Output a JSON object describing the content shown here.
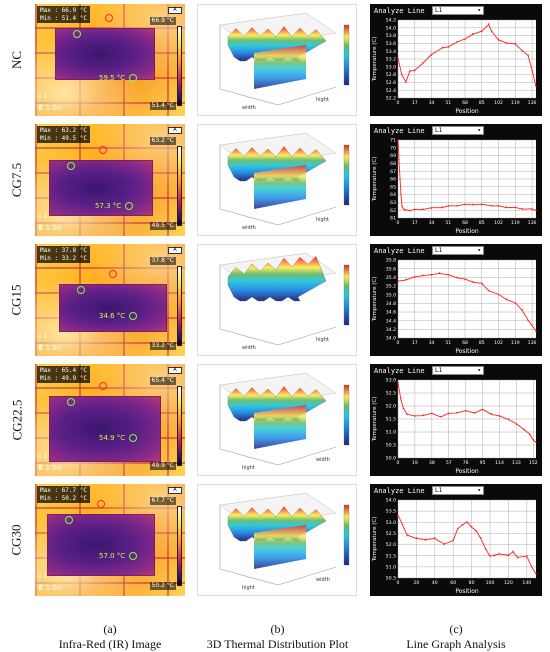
{
  "rows": [
    {
      "label": "NC",
      "max_text": "Max : 66.9 °C",
      "min_text": "Min : 51.4 °C",
      "scale_max": "66.9 °C",
      "scale_min": "51.4 °C",
      "spot": "59.5 °C",
      "zoom": "x 1",
      "emissivity": "1.00",
      "axis_a": "width",
      "axis_b": "hight"
    },
    {
      "label": "CG7.5",
      "max_text": "Max : 63.2 °C",
      "min_text": "Min : 49.5 °C",
      "scale_max": "63.2 °C",
      "scale_min": "49.5 °C",
      "spot": "57.3 °C",
      "zoom": "x 1",
      "emissivity": "1.00",
      "axis_a": "width",
      "axis_b": "hight"
    },
    {
      "label": "CG15",
      "max_text": "Max : 37.8 °C",
      "min_text": "Min : 33.2 °C",
      "scale_max": "37.8 °C",
      "scale_min": "33.2 °C",
      "spot": "34.6 °C",
      "zoom": "x 1",
      "emissivity": "1.00",
      "axis_a": "width",
      "axis_b": "hight"
    },
    {
      "label": "CG22.5",
      "max_text": "Max : 65.4 °C",
      "min_text": "Min : 49.9 °C",
      "scale_max": "65.4 °C",
      "scale_min": "49.9 °C",
      "spot": "54.9 °C",
      "zoom": "x 1",
      "emissivity": "1.00",
      "axis_a": "hight",
      "axis_b": "width"
    },
    {
      "label": "CG30",
      "max_text": "Max : 67.7 °C",
      "min_text": "Min : 50.2 °C",
      "scale_max": "67.7 °C",
      "scale_min": "50.2 °C",
      "spot": "57.0 °C",
      "zoom": "x 1",
      "emissivity": "1.00",
      "axis_a": "hight",
      "axis_b": "width"
    }
  ],
  "captions": [
    {
      "letter": "(a)",
      "text": "Infra-Red (IR) Image"
    },
    {
      "letter": "(b)",
      "text": "3D Thermal Distribution Plot"
    },
    {
      "letter": "(c)",
      "text": "Line Graph Analysis"
    }
  ],
  "colors": {
    "line": "#ff2020",
    "grid": "#9a9a9a",
    "axis_bg": "#ffffff",
    "panel_bg": "#0a0a0a"
  },
  "chart_data": [
    {
      "type": "line",
      "header": "Analyze Line",
      "selected_line": "L1",
      "xlabel": "Position",
      "ylabel": "Temperature (C)",
      "xticks": [
        0,
        17,
        34,
        51,
        68,
        85,
        102,
        119,
        136
      ],
      "yticks": [
        52.2,
        52.4,
        52.6,
        52.8,
        53.0,
        53.2,
        53.4,
        53.6,
        53.8,
        54.0,
        54.2
      ],
      "xlim": [
        0,
        140
      ],
      "ylim": [
        52.2,
        54.2
      ],
      "series": [
        {
          "x": [
            0,
            4,
            8,
            12,
            17,
            25,
            34,
            45,
            51,
            60,
            68,
            76,
            85,
            92,
            95,
            102,
            110,
            119,
            126,
            132,
            136,
            140
          ],
          "values": [
            53.2,
            52.8,
            52.6,
            52.9,
            52.9,
            53.1,
            53.3,
            53.5,
            53.5,
            53.65,
            53.7,
            53.85,
            53.9,
            54.1,
            53.9,
            53.7,
            53.6,
            53.6,
            53.4,
            53.3,
            52.9,
            52.5
          ]
        }
      ]
    },
    {
      "type": "line",
      "header": "Analyze Line",
      "selected_line": "L1",
      "xlabel": "Position",
      "ylabel": "Temperature (C)",
      "xticks": [
        0,
        17,
        34,
        51,
        68,
        85,
        102,
        119,
        136
      ],
      "yticks": [
        61,
        62,
        63,
        64,
        65,
        66,
        67,
        68,
        69,
        70,
        71
      ],
      "xlim": [
        0,
        140
      ],
      "ylim": [
        61,
        71
      ],
      "series": [
        {
          "x": [
            0,
            1,
            2,
            3,
            4,
            6,
            8,
            12,
            17,
            25,
            34,
            45,
            51,
            60,
            68,
            76,
            85,
            95,
            102,
            110,
            119,
            126,
            136,
            140
          ],
          "values": [
            71,
            68.5,
            66,
            64,
            62.5,
            62.1,
            62,
            62,
            62.05,
            62.15,
            62.25,
            62.4,
            62.5,
            62.6,
            62.7,
            62.75,
            62.7,
            62.6,
            62.5,
            62.4,
            62.3,
            62.2,
            62.1,
            62
          ]
        }
      ]
    },
    {
      "type": "line",
      "header": "Analyze Line",
      "selected_line": "L1",
      "xlabel": "Position",
      "ylabel": "Temperature (C)",
      "xticks": [
        0,
        17,
        34,
        51,
        68,
        85,
        102,
        119,
        136
      ],
      "yticks": [
        34.0,
        34.2,
        34.4,
        34.6,
        34.8,
        35.0,
        35.2,
        35.4,
        35.6,
        35.8
      ],
      "xlim": [
        0,
        140
      ],
      "ylim": [
        34.0,
        35.8
      ],
      "series": [
        {
          "x": [
            0,
            8,
            17,
            25,
            34,
            42,
            51,
            60,
            68,
            76,
            85,
            92,
            102,
            110,
            119,
            126,
            132,
            136,
            140
          ],
          "values": [
            35.3,
            35.35,
            35.4,
            35.45,
            35.45,
            35.5,
            35.45,
            35.4,
            35.35,
            35.3,
            35.25,
            35.1,
            35.0,
            34.9,
            34.8,
            34.65,
            34.4,
            34.3,
            34.15
          ]
        }
      ]
    },
    {
      "type": "line",
      "header": "Analyze Line",
      "selected_line": "L1",
      "xlabel": "Position",
      "ylabel": "Temperature (C)",
      "xticks": [
        0,
        19,
        38,
        57,
        76,
        95,
        114,
        133,
        152
      ],
      "yticks": [
        50.0,
        50.5,
        51.0,
        51.5,
        52.0,
        52.5,
        53.0
      ],
      "xlim": [
        0,
        155
      ],
      "ylim": [
        50.0,
        53.0
      ],
      "series": [
        {
          "x": [
            0,
            3,
            6,
            10,
            19,
            28,
            38,
            48,
            57,
            66,
            76,
            86,
            95,
            105,
            114,
            124,
            133,
            142,
            148,
            152,
            155
          ],
          "values": [
            52.9,
            52.3,
            51.9,
            51.7,
            51.6,
            51.65,
            51.7,
            51.6,
            51.7,
            51.75,
            51.8,
            51.75,
            51.85,
            51.7,
            51.6,
            51.5,
            51.3,
            51.1,
            50.9,
            50.7,
            50.6
          ]
        }
      ]
    },
    {
      "type": "line",
      "header": "Analyze Line",
      "selected_line": "L1",
      "xlabel": "Position",
      "ylabel": "Temperature (C)",
      "xticks": [
        0,
        20,
        40,
        60,
        80,
        100,
        120,
        140
      ],
      "yticks": [
        50.5,
        51.0,
        51.5,
        52.0,
        52.5,
        53.0,
        53.5,
        54.0
      ],
      "xlim": [
        0,
        150
      ],
      "ylim": [
        50.5,
        54.0
      ],
      "series": [
        {
          "x": [
            0,
            5,
            10,
            20,
            30,
            40,
            50,
            60,
            65,
            70,
            75,
            80,
            85,
            90,
            95,
            100,
            105,
            110,
            120,
            125,
            130,
            140,
            145,
            150
          ],
          "values": [
            53.3,
            52.9,
            52.4,
            52.3,
            52.2,
            52.3,
            52.0,
            52.2,
            52.7,
            52.9,
            53.0,
            52.8,
            52.6,
            52.3,
            51.8,
            51.5,
            51.5,
            51.6,
            51.5,
            51.7,
            51.4,
            51.5,
            51.0,
            50.7
          ]
        }
      ]
    }
  ]
}
